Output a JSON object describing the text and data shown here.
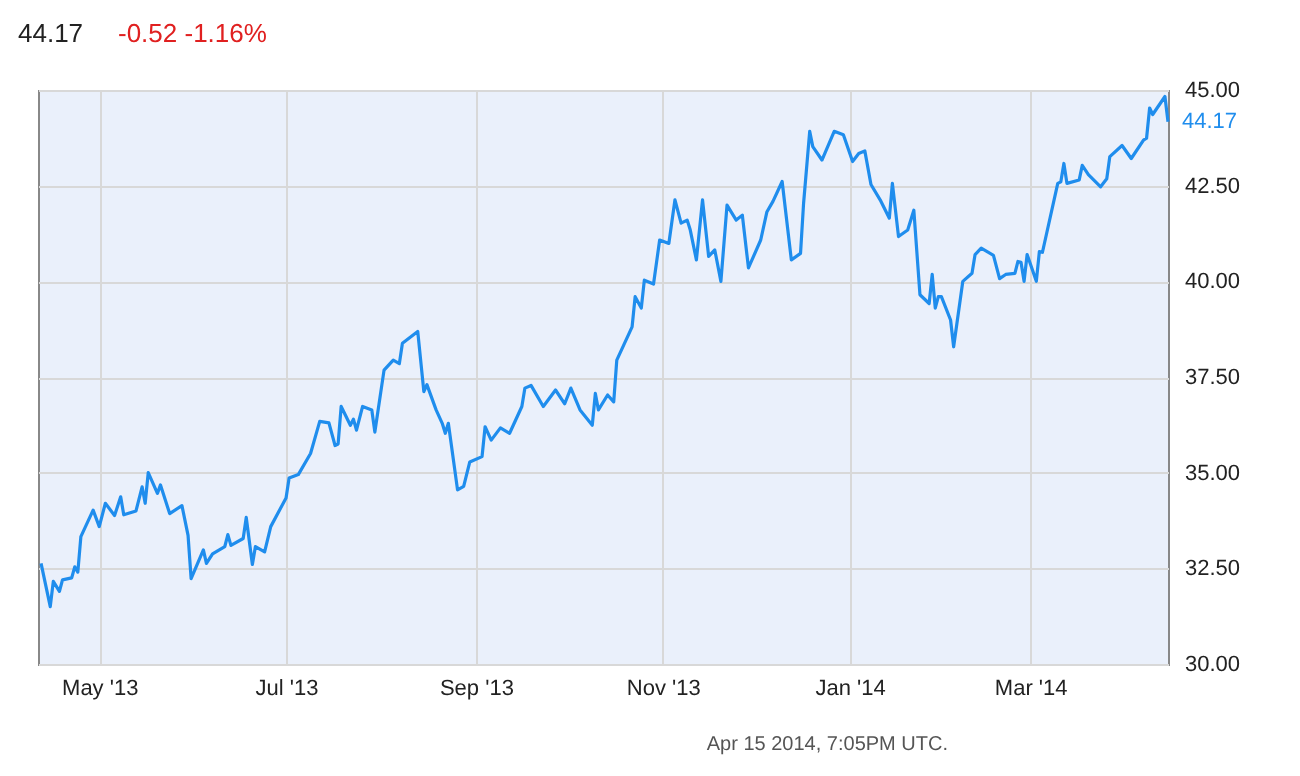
{
  "chart_data": {
    "type": "line",
    "title": "44.17",
    "x": [
      "2013-04-12",
      "2013-04-15",
      "2013-04-16",
      "2013-04-18",
      "2013-04-19",
      "2013-04-22",
      "2013-04-23",
      "2013-04-24",
      "2013-04-25",
      "2013-04-29",
      "2013-05-01",
      "2013-05-03",
      "2013-05-06",
      "2013-05-08",
      "2013-05-09",
      "2013-05-13",
      "2013-05-15",
      "2013-05-16",
      "2013-05-17",
      "2013-05-20",
      "2013-05-21",
      "2013-05-24",
      "2013-05-28",
      "2013-05-30",
      "2013-05-31",
      "2013-06-04",
      "2013-06-05",
      "2013-06-07",
      "2013-06-11",
      "2013-06-12",
      "2013-06-13",
      "2013-06-17",
      "2013-06-18",
      "2013-06-20",
      "2013-06-21",
      "2013-06-24",
      "2013-06-26",
      "2013-07-01",
      "2013-07-02",
      "2013-07-05",
      "2013-07-09",
      "2013-07-12",
      "2013-07-15",
      "2013-07-17",
      "2013-07-18",
      "2013-07-19",
      "2013-07-22",
      "2013-07-23",
      "2013-07-24",
      "2013-07-26",
      "2013-07-29",
      "2013-07-30",
      "2013-08-02",
      "2013-08-05",
      "2013-08-07",
      "2013-08-08",
      "2013-08-13",
      "2013-08-15",
      "2013-08-16",
      "2013-08-19",
      "2013-08-21",
      "2013-08-22",
      "2013-08-23",
      "2013-08-26",
      "2013-08-28",
      "2013-08-30",
      "2013-09-03",
      "2013-09-04",
      "2013-09-06",
      "2013-09-09",
      "2013-09-12",
      "2013-09-16",
      "2013-09-17",
      "2013-09-19",
      "2013-09-23",
      "2013-09-27",
      "2013-09-30",
      "2013-10-02",
      "2013-10-05",
      "2013-10-09",
      "2013-10-10",
      "2013-10-11",
      "2013-10-14",
      "2013-10-16",
      "2013-10-17",
      "2013-10-22",
      "2013-10-23",
      "2013-10-25",
      "2013-10-26",
      "2013-10-29",
      "2013-10-31",
      "2013-11-03",
      "2013-11-05",
      "2013-11-07",
      "2013-11-09",
      "2013-11-10",
      "2013-11-12",
      "2013-11-14",
      "2013-11-16",
      "2013-11-18",
      "2013-11-20",
      "2013-11-22",
      "2013-11-25",
      "2013-11-27",
      "2013-11-29",
      "2013-12-03",
      "2013-12-05",
      "2013-12-07",
      "2013-12-10",
      "2013-12-13",
      "2013-12-16",
      "2013-12-17",
      "2013-12-19",
      "2013-12-20",
      "2013-12-23",
      "2013-12-27",
      "2013-12-30",
      "2014-01-02",
      "2014-01-04",
      "2014-01-06",
      "2014-01-08",
      "2014-01-11",
      "2014-01-14",
      "2014-01-15",
      "2014-01-17",
      "2014-01-20",
      "2014-01-22",
      "2014-01-24",
      "2014-01-27",
      "2014-01-28",
      "2014-01-29",
      "2014-01-30",
      "2014-01-31",
      "2014-02-03",
      "2014-02-04",
      "2014-02-07",
      "2014-02-10",
      "2014-02-11",
      "2014-02-13",
      "2014-02-17",
      "2014-02-19",
      "2014-02-21",
      "2014-02-24",
      "2014-02-25",
      "2014-02-26",
      "2014-02-27",
      "2014-02-28",
      "2014-03-03",
      "2014-03-04",
      "2014-03-05",
      "2014-03-10",
      "2014-03-11",
      "2014-03-12",
      "2014-03-13",
      "2014-03-17",
      "2014-03-18",
      "2014-03-20",
      "2014-03-24",
      "2014-03-26",
      "2014-03-27",
      "2014-03-31",
      "2014-04-03",
      "2014-04-07",
      "2014-04-08",
      "2014-04-09",
      "2014-04-10",
      "2014-04-14",
      "2014-04-15"
    ],
    "series": [
      {
        "color": "#1f8ded",
        "values": [
          32.63,
          31.5,
          32.16,
          31.9,
          32.2,
          32.25,
          32.54,
          32.4,
          33.33,
          34.02,
          33.59,
          34.2,
          33.88,
          34.37,
          33.9,
          34.0,
          34.63,
          34.2,
          35.0,
          34.46,
          34.68,
          33.93,
          34.14,
          33.36,
          32.23,
          32.98,
          32.63,
          32.88,
          33.07,
          33.38,
          33.1,
          33.28,
          33.83,
          32.6,
          33.07,
          32.93,
          33.59,
          34.34,
          34.86,
          34.95,
          35.5,
          36.34,
          36.3,
          35.71,
          35.75,
          36.73,
          36.24,
          36.4,
          36.11,
          36.73,
          36.64,
          36.06,
          37.68,
          37.94,
          37.85,
          38.38,
          38.69,
          37.12,
          37.3,
          36.64,
          36.29,
          36.03,
          36.29,
          34.55,
          34.64,
          35.28,
          35.42,
          36.2,
          35.85,
          36.17,
          36.03,
          36.73,
          37.21,
          37.28,
          36.73,
          37.16,
          36.8,
          37.21,
          36.64,
          36.24,
          37.07,
          36.64,
          37.03,
          36.85,
          37.94,
          38.81,
          39.6,
          39.3,
          40.03,
          39.93,
          41.08,
          40.99,
          42.13,
          41.52,
          41.6,
          41.34,
          40.56,
          42.13,
          40.65,
          40.82,
          40.0,
          41.99,
          41.6,
          41.73,
          40.35,
          41.08,
          41.81,
          42.09,
          42.61,
          40.56,
          40.73,
          42.04,
          43.92,
          43.52,
          43.17,
          43.92,
          43.83,
          43.13,
          43.34,
          43.41,
          42.53,
          42.13,
          41.65,
          42.56,
          41.17,
          41.34,
          41.86,
          39.65,
          39.42,
          40.18,
          39.3,
          39.6,
          39.6,
          38.99,
          38.29,
          40.0,
          40.21,
          40.7,
          40.87,
          40.68,
          40.07,
          40.18,
          40.21,
          40.52,
          40.5,
          40.0,
          40.7,
          40.0,
          40.78,
          40.76,
          42.56,
          42.6,
          43.08,
          42.56,
          42.65,
          43.03,
          42.79,
          42.47,
          42.68,
          43.26,
          43.55,
          43.21,
          43.69,
          43.74,
          44.53,
          44.36,
          44.83,
          44.17
        ]
      }
    ],
    "xlim": [
      "2013-04-11",
      "2014-04-15"
    ],
    "xticks": [
      {
        "value": "2013-05-01",
        "label": "May '13"
      },
      {
        "value": "2013-07-01",
        "label": "Jul '13"
      },
      {
        "value": "2013-09-01",
        "label": "Sep '13"
      },
      {
        "value": "2013-11-01",
        "label": "Nov '13"
      },
      {
        "value": "2014-01-01",
        "label": "Jan '14"
      },
      {
        "value": "2014-03-01",
        "label": "Mar '14"
      }
    ],
    "ylim": [
      30,
      45
    ],
    "yticks": [
      {
        "value": 30,
        "label": "30.00"
      },
      {
        "value": 32.5,
        "label": "32.50"
      },
      {
        "value": 35,
        "label": "35.00"
      },
      {
        "value": 37.5,
        "label": "37.50"
      },
      {
        "value": 40,
        "label": "40.00"
      },
      {
        "value": 42.5,
        "label": "42.50"
      },
      {
        "value": 45,
        "label": "45.00"
      }
    ],
    "grid": true,
    "marker": "none",
    "line_style": "solid",
    "annotations": [
      "-0.52  -1.16%",
      {
        "text": "44.17",
        "x": "2014-04-15",
        "y": 44.17
      },
      "Apr 15 2014, 7:05PM UTC."
    ]
  }
}
